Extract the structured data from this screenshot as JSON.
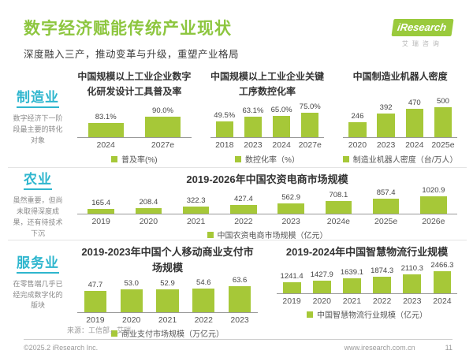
{
  "header": {
    "title": "数字经济赋能传统产业现状",
    "subtitle": "深度融入三产，推动变革与升级，重塑产业格局",
    "logo": {
      "brand_i": "i",
      "brand": "Research",
      "brand_cn": "艾瑞咨询"
    }
  },
  "sections": [
    {
      "label": "制造业",
      "description": "数字经济下一阶段最主要的转化对象",
      "chart_indexes": [
        0,
        1,
        2
      ]
    },
    {
      "label": "农业",
      "description": "虽然重要，但尚未取得深度成果，还有待技术下沉",
      "chart_indexes": [
        3
      ]
    },
    {
      "label": "服务业",
      "description": "在零售端几乎已经完成数字化的版块",
      "chart_indexes": [
        4,
        5
      ]
    }
  ],
  "chart_data": [
    {
      "type": "bar",
      "title": "中国规模以上工业企业数字化研发设计工具普及率",
      "categories": [
        "2024",
        "2027e"
      ],
      "values": [
        83.1,
        90.0
      ],
      "data_labels": [
        "83.1%",
        "90.0%"
      ],
      "legend": "普及率(%)",
      "ylabel": "普及率(%)",
      "ylim": [
        0,
        100
      ]
    },
    {
      "type": "bar",
      "title": "中国规模以上工业企业关键工序数控化率",
      "categories": [
        "2018",
        "2023",
        "2024",
        "2027e"
      ],
      "values": [
        49.5,
        63.1,
        65.0,
        75.0
      ],
      "data_labels": [
        "49.5%",
        "63.1%",
        "65.0%",
        "75.0%"
      ],
      "legend": "数控化率（%）",
      "ylabel": "数控化率（%）",
      "ylim": [
        0,
        100
      ]
    },
    {
      "type": "bar",
      "title": "中国制造业机器人密度",
      "categories": [
        "2020",
        "2023",
        "2024",
        "2025e"
      ],
      "values": [
        246,
        392,
        470,
        500
      ],
      "data_labels": [
        "246",
        "392",
        "470",
        "500"
      ],
      "legend": "制造业机器人密度（台/万人）",
      "ylabel": "制造业机器人密度（台/万人）",
      "ylim": [
        0,
        550
      ]
    },
    {
      "type": "bar",
      "title": "2019-2026年中国农资电商市场规模",
      "categories": [
        "2019",
        "2020",
        "2021",
        "2022",
        "2023",
        "2024e",
        "2025e",
        "2026e"
      ],
      "values": [
        165.4,
        208.4,
        322.3,
        427.4,
        562.9,
        708.1,
        857.4,
        1020.9
      ],
      "data_labels": [
        "165.4",
        "208.4",
        "322.3",
        "427.4",
        "562.9",
        "708.1",
        "857.4",
        "1020.9"
      ],
      "legend": "中国农资电商市场规模（亿元）",
      "ylabel": "中国农资电商市场规模（亿元）",
      "ylim": [
        0,
        1100
      ]
    },
    {
      "type": "bar",
      "title": "2019-2023年中国个人移动商业支付市场规模",
      "categories": [
        "2019",
        "2020",
        "2021",
        "2022",
        "2023"
      ],
      "values": [
        47.7,
        53.0,
        52.9,
        54.6,
        63.6
      ],
      "data_labels": [
        "47.7",
        "53.0",
        "52.9",
        "54.6",
        "63.6"
      ],
      "legend": "商业支付市场规模（万亿元）",
      "ylabel": "商业支付市场规模（万亿元）",
      "ylim": [
        0,
        70
      ]
    },
    {
      "type": "bar",
      "title": "2019-2024年中国智慧物流行业规模",
      "categories": [
        "2019",
        "2020",
        "2021",
        "2022",
        "2023",
        "2024"
      ],
      "values": [
        1241.4,
        1427.9,
        1639.1,
        1874.3,
        2110.3,
        2466.3
      ],
      "data_labels": [
        "1241.4",
        "1427.9",
        "1639.1",
        "1874.3",
        "2110.3",
        "2466.3"
      ],
      "legend": "中国智慧物流行业规模（亿元）",
      "ylabel": "中国智慧物流行业规模（亿元）",
      "ylim": [
        0,
        2700
      ]
    }
  ],
  "footer": {
    "source": "来源：工信部，艾瑞。",
    "copyright": "©2025.2 iResearch Inc.",
    "website": "www.iresearch.com.cn",
    "page_number": "11"
  },
  "colors": {
    "bar_green": "#a6c838",
    "title_green": "#8dc63f",
    "section_cyan": "#2eb6ce"
  }
}
